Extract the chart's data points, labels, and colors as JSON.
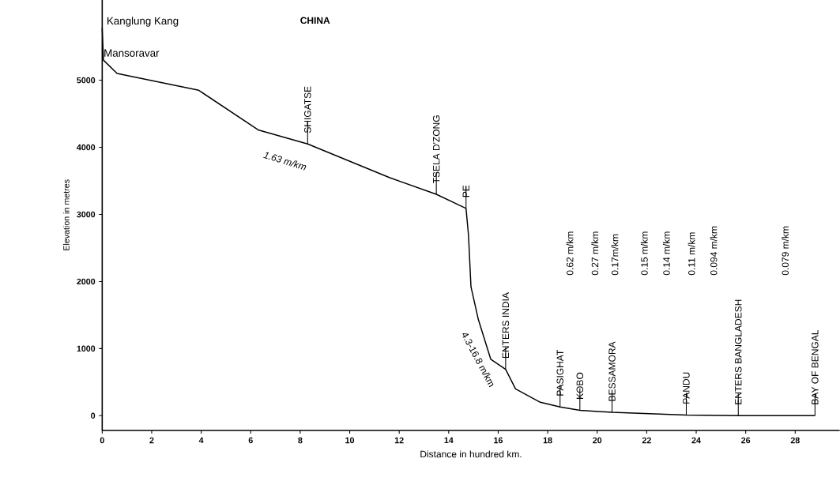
{
  "chart_data": {
    "type": "line",
    "xlabel": "Distance in hundred km.",
    "ylabel": "Elevation in metres",
    "xlim": [
      0,
      29.8
    ],
    "ylim": [
      -220,
      6200
    ],
    "xticks": [
      0,
      2,
      4,
      6,
      8,
      10,
      12,
      14,
      16,
      18,
      20,
      22,
      24,
      26,
      28
    ],
    "yticks": [
      0,
      1000,
      2000,
      3000,
      4000,
      5000
    ],
    "marker": "none",
    "line_style": "solid",
    "series": [
      {
        "color": "#000000",
        "x": [
          0,
          0.05,
          0.6,
          3.9,
          6.3,
          8.3,
          11.6,
          13.5,
          14.7,
          14.8,
          14.9,
          15.2,
          15.7,
          16.3,
          16.7,
          17.7,
          18.5,
          19.3,
          20.6,
          23.6,
          25.7,
          28.8
        ],
        "values": [
          5780,
          5300,
          5100,
          4850,
          4260,
          4050,
          3550,
          3300,
          3090,
          2690,
          1920,
          1430,
          840,
          690,
          400,
          200,
          130,
          80,
          50,
          10,
          0,
          0
        ]
      }
    ],
    "annotations": [
      {
        "text": "Kanglung Kang",
        "x": 0,
        "y": 5780
      },
      {
        "text": "Mansoravar",
        "x": 0.05,
        "y": 5300
      },
      "CHINA",
      {
        "text": "SHIGATSE",
        "x": 8.3,
        "y": 4050
      },
      "1.63 m/km",
      {
        "text": "TSELA D'ZONG",
        "x": 13.5,
        "y": 3300
      },
      {
        "text": "PE",
        "x": 14.7,
        "y": 3090
      },
      "4.3-16.8 m/km",
      {
        "text": "ENTERS INDIA",
        "x": 16.3,
        "y": 690
      },
      {
        "text": "PASIGHAT",
        "x": 18.5,
        "y": 130
      },
      {
        "text": "KOBO",
        "x": 19.3,
        "y": 80
      },
      {
        "text": "BESSAMORA",
        "x": 20.6,
        "y": 50
      },
      {
        "text": "PANDU",
        "x": 23.6,
        "y": 10
      },
      {
        "text": "ENTERS BANGLADESH",
        "x": 25.7,
        "y": 0
      },
      {
        "text": "BAY OF BENGAL",
        "x": 28.8,
        "y": 0
      },
      "0.62 m/km",
      "0.27 m/km",
      "0.17m/km",
      "0.15 m/km",
      "0.14 m/km",
      "0.11 m/km",
      "0.094 m/km",
      "0.079 m/km"
    ]
  }
}
